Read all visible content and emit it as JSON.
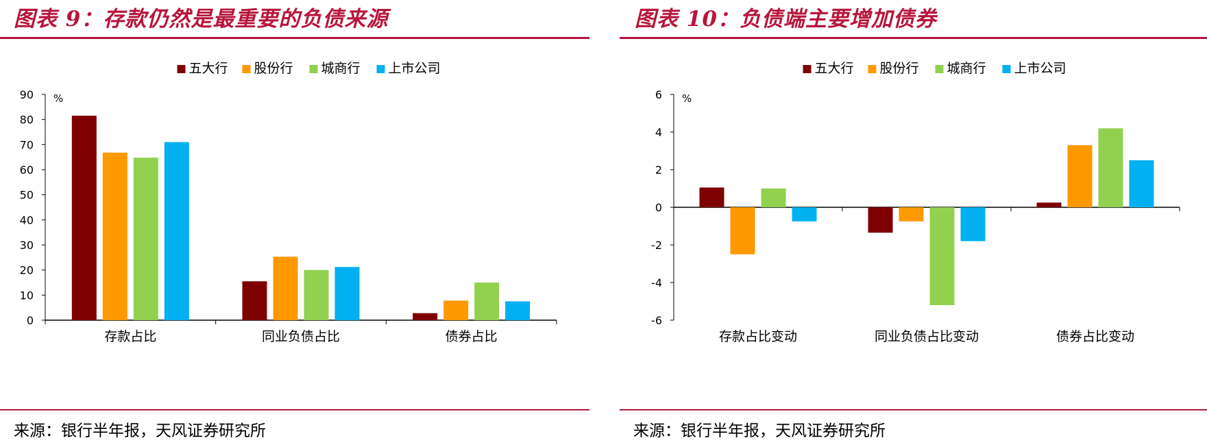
{
  "figures": [
    {
      "title": "图表 9：存款仍然是最重要的负债来源",
      "source": "来源：银行半年报，天风证券研究所",
      "chart_data": {
        "type": "bar",
        "categories": [
          "存款占比",
          "同业负债占比",
          "债券占比"
        ],
        "series": [
          {
            "name": "五大行",
            "color": "#7f0000",
            "values": [
              81.5,
              15.5,
              2.8
            ]
          },
          {
            "name": "股份行",
            "color": "#ff9900",
            "values": [
              66.8,
              25.3,
              7.8
            ]
          },
          {
            "name": "城商行",
            "color": "#92d050",
            "values": [
              64.8,
              20.0,
              15.0
            ]
          },
          {
            "name": "上市公司",
            "color": "#00b0f0",
            "values": [
              71.0,
              21.2,
              7.5
            ]
          }
        ],
        "unit_label": "%",
        "ylim": [
          0,
          90
        ],
        "yticks": [
          0,
          10,
          20,
          30,
          40,
          50,
          60,
          70,
          80,
          90
        ],
        "legend": "top-center",
        "grid": false
      }
    },
    {
      "title": "图表 10：负债端主要增加债券",
      "source": "来源：银行半年报，天风证券研究所",
      "chart_data": {
        "type": "bar",
        "categories": [
          "存款占比变动",
          "同业负债占比变动",
          "债券占比变动"
        ],
        "series": [
          {
            "name": "五大行",
            "color": "#7f0000",
            "values": [
              1.05,
              -1.35,
              0.25
            ]
          },
          {
            "name": "股份行",
            "color": "#ff9900",
            "values": [
              -2.5,
              -0.75,
              3.3
            ]
          },
          {
            "name": "城商行",
            "color": "#92d050",
            "values": [
              1.0,
              -5.2,
              4.2
            ]
          },
          {
            "name": "上市公司",
            "color": "#00b0f0",
            "values": [
              -0.75,
              -1.8,
              2.5
            ]
          }
        ],
        "unit_label": "%",
        "ylim": [
          -6,
          6
        ],
        "yticks": [
          -6,
          -4,
          -2,
          0,
          2,
          4,
          6
        ],
        "legend": "top-center",
        "grid": false
      }
    }
  ]
}
